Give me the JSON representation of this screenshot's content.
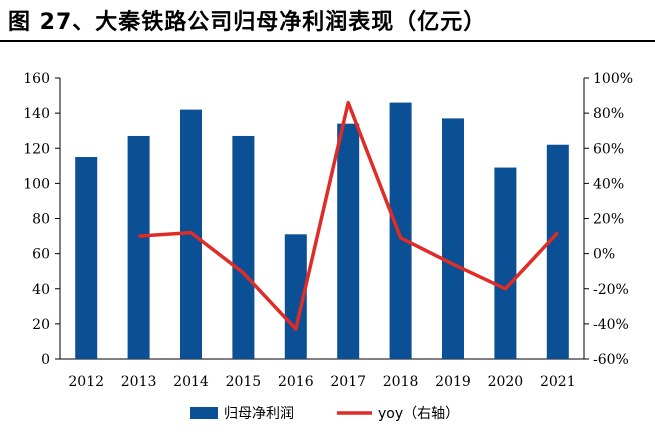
{
  "title": "图 27、大秦铁路公司归母净利润表现（亿元）",
  "colors": {
    "bar": "#0b4f94",
    "line": "#e02b27",
    "axis": "#000000"
  },
  "chart_data": {
    "type": "bar",
    "categories": [
      "2012",
      "2013",
      "2014",
      "2015",
      "2016",
      "2017",
      "2018",
      "2019",
      "2020",
      "2021"
    ],
    "series": [
      {
        "name": "归母净利润",
        "type": "bar",
        "axis": "left",
        "values": [
          115,
          127,
          142,
          127,
          71,
          134,
          146,
          137,
          109,
          122
        ]
      },
      {
        "name": "yoy（右轴）",
        "type": "line",
        "axis": "right",
        "values": [
          null,
          10,
          12,
          -11,
          -43,
          86,
          9,
          -6,
          -20,
          12
        ]
      }
    ],
    "ylim_left": [
      0,
      160
    ],
    "yticks_left": [
      "0",
      "20",
      "40",
      "60",
      "80",
      "100",
      "120",
      "140",
      "160"
    ],
    "ylim_right": [
      -60,
      100
    ],
    "yticks_right": [
      "-60%",
      "-40%",
      "-20%",
      "0%",
      "20%",
      "40%",
      "60%",
      "80%",
      "100%"
    ],
    "grid": false,
    "legend_position": "bottom"
  }
}
